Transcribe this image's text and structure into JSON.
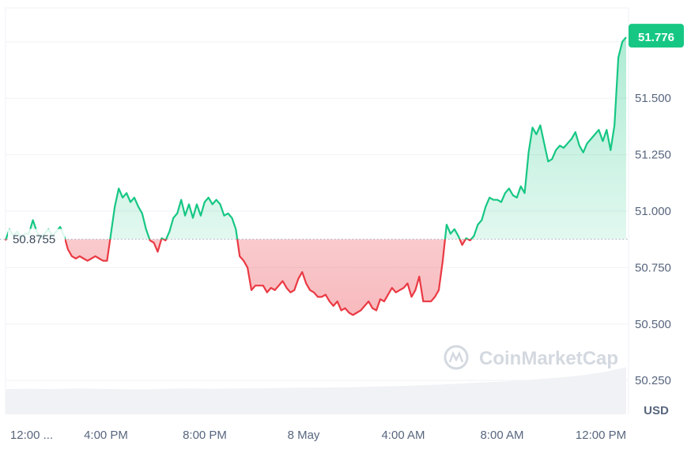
{
  "chart_data": {
    "type": "area",
    "currency": "USD",
    "baseline": 50.8755,
    "baseline_label": "50.8755",
    "current_value_label": "51.776",
    "watermark": "CoinMarketCap",
    "ylim": [
      50.1,
      51.9
    ],
    "yticks": [
      {
        "value": 51.5,
        "label": "51.500"
      },
      {
        "value": 51.25,
        "label": "51.250"
      },
      {
        "value": 51.0,
        "label": "51.000"
      },
      {
        "value": 50.75,
        "label": "50.750"
      },
      {
        "value": 50.5,
        "label": "50.500"
      },
      {
        "value": 50.25,
        "label": "50.250"
      }
    ],
    "xticks": [
      "12:00 ...",
      "4:00 PM",
      "8:00 PM",
      "8 May",
      "4:00 AM",
      "8:00 AM",
      "12:00 PM"
    ],
    "colors": {
      "up": "#16c784",
      "down": "#ea3943",
      "axis_text": "#58667e",
      "grid": "#eff2f5"
    },
    "series": [
      {
        "values": [
          50.87,
          50.92,
          50.89,
          50.91,
          50.88,
          50.9,
          50.9,
          50.96,
          50.91,
          50.88,
          50.9,
          50.92,
          50.89,
          50.91,
          50.93,
          50.89,
          50.83,
          50.8,
          50.79,
          50.8,
          50.79,
          50.78,
          50.79,
          50.8,
          50.79,
          50.78,
          50.78,
          50.9,
          51.02,
          51.1,
          51.06,
          51.08,
          51.04,
          51.06,
          51.02,
          50.99,
          50.92,
          50.87,
          50.86,
          50.82,
          50.88,
          50.87,
          50.91,
          50.97,
          50.99,
          51.05,
          50.98,
          51.03,
          50.97,
          51.03,
          50.98,
          51.04,
          51.06,
          51.03,
          51.05,
          51.03,
          50.98,
          50.99,
          50.97,
          50.92,
          50.8,
          50.78,
          50.75,
          50.65,
          50.67,
          50.67,
          50.67,
          50.64,
          50.66,
          50.65,
          50.67,
          50.69,
          50.66,
          50.64,
          50.65,
          50.7,
          50.73,
          50.68,
          50.65,
          50.64,
          50.62,
          50.62,
          50.63,
          50.6,
          50.58,
          50.6,
          50.56,
          50.57,
          50.55,
          50.54,
          50.55,
          50.56,
          50.58,
          50.6,
          50.57,
          50.56,
          50.61,
          50.6,
          50.63,
          50.66,
          50.64,
          50.65,
          50.66,
          50.68,
          50.62,
          50.65,
          50.71,
          50.6,
          50.6,
          50.6,
          50.62,
          50.65,
          50.78,
          50.94,
          50.9,
          50.92,
          50.89,
          50.85,
          50.88,
          50.87,
          50.89,
          50.94,
          50.96,
          51.02,
          51.06,
          51.05,
          51.05,
          51.04,
          51.08,
          51.1,
          51.07,
          51.06,
          51.11,
          51.08,
          51.26,
          51.37,
          51.34,
          51.38,
          51.3,
          51.22,
          51.23,
          51.27,
          51.29,
          51.28,
          51.3,
          51.32,
          51.35,
          51.29,
          51.26,
          51.3,
          51.32,
          51.34,
          51.36,
          51.31,
          51.36,
          51.27,
          51.38,
          51.68,
          51.75,
          51.77
        ]
      }
    ],
    "volume": [
      0.91,
      0.92,
      0.91,
      0.93,
      0.92,
      0.91,
      0.9,
      0.92,
      0.93,
      0.92,
      0.93,
      0.94,
      0.95,
      0.96,
      0.97,
      0.98,
      1.0,
      1.02,
      1.05,
      1.08,
      1.12,
      1.16,
      1.2,
      1.26,
      1.32,
      1.4,
      1.52,
      1.7
    ]
  }
}
